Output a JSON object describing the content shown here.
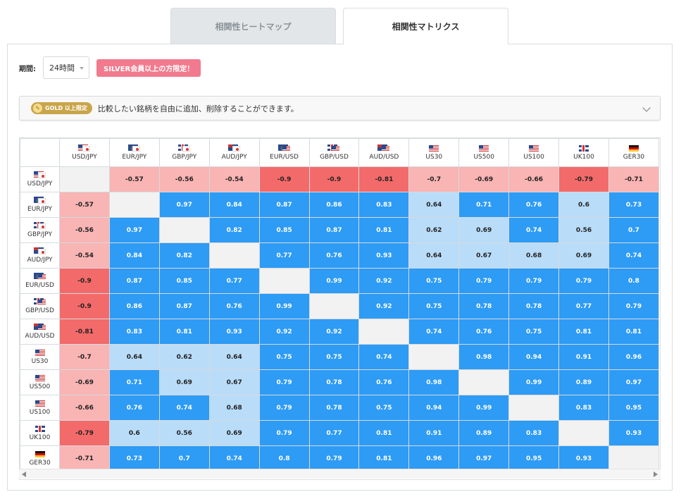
{
  "tabs": [
    {
      "label": "相関性ヒートマップ",
      "active": false
    },
    {
      "label": "相関性マトリクス",
      "active": true
    }
  ],
  "period": {
    "label": "期間:",
    "selected": "24時間"
  },
  "silver_badge": "SILVER会員以上の方限定！",
  "gold_bar": {
    "badge": "GOLD 以上限定",
    "text": "比較したい銘柄を自由に追加、削除することができます。",
    "icon": "coin-icon"
  },
  "colors": {
    "neg_strong": "#f36a6a",
    "neg_mid": "#f9b4b4",
    "pos_strong": "#2e9bf5",
    "pos_mid": "#b9dcf9",
    "diag": "#f2f2f2"
  },
  "symbols": [
    {
      "label": "USD/JPY",
      "flags": [
        "us",
        "jp"
      ]
    },
    {
      "label": "EUR/JPY",
      "flags": [
        "eu",
        "jp"
      ]
    },
    {
      "label": "GBP/JPY",
      "flags": [
        "gb",
        "jp"
      ]
    },
    {
      "label": "AUD/JPY",
      "flags": [
        "au",
        "jp"
      ]
    },
    {
      "label": "EUR/USD",
      "flags": [
        "eu",
        "us"
      ]
    },
    {
      "label": "GBP/USD",
      "flags": [
        "gb",
        "us"
      ]
    },
    {
      "label": "AUD/USD",
      "flags": [
        "au",
        "us"
      ]
    },
    {
      "label": "US30",
      "flags": [
        "us"
      ]
    },
    {
      "label": "US500",
      "flags": [
        "us"
      ]
    },
    {
      "label": "US100",
      "flags": [
        "us"
      ]
    },
    {
      "label": "UK100",
      "flags": [
        "gb"
      ]
    },
    {
      "label": "GER30",
      "flags": [
        "de"
      ]
    }
  ],
  "matrix": [
    [
      null,
      "-0.57",
      "-0.56",
      "-0.54",
      "-0.9",
      "-0.9",
      "-0.81",
      "-0.7",
      "-0.69",
      "-0.66",
      "-0.79",
      "-0.71"
    ],
    [
      "-0.57",
      null,
      "0.97",
      "0.84",
      "0.87",
      "0.86",
      "0.83",
      "0.64",
      "0.71",
      "0.76",
      "0.6",
      "0.73"
    ],
    [
      "-0.56",
      "0.97",
      null,
      "0.82",
      "0.85",
      "0.87",
      "0.81",
      "0.62",
      "0.69",
      "0.74",
      "0.56",
      "0.7"
    ],
    [
      "-0.54",
      "0.84",
      "0.82",
      null,
      "0.77",
      "0.76",
      "0.93",
      "0.64",
      "0.67",
      "0.68",
      "0.69",
      "0.74"
    ],
    [
      "-0.9",
      "0.87",
      "0.85",
      "0.77",
      null,
      "0.99",
      "0.92",
      "0.75",
      "0.79",
      "0.79",
      "0.79",
      "0.8"
    ],
    [
      "-0.9",
      "0.86",
      "0.87",
      "0.76",
      "0.99",
      null,
      "0.92",
      "0.75",
      "0.78",
      "0.78",
      "0.77",
      "0.79"
    ],
    [
      "-0.81",
      "0.83",
      "0.81",
      "0.93",
      "0.92",
      "0.92",
      null,
      "0.74",
      "0.76",
      "0.75",
      "0.81",
      "0.81"
    ],
    [
      "-0.7",
      "0.64",
      "0.62",
      "0.64",
      "0.75",
      "0.75",
      "0.74",
      null,
      "0.98",
      "0.94",
      "0.91",
      "0.96"
    ],
    [
      "-0.69",
      "0.71",
      "0.69",
      "0.67",
      "0.79",
      "0.78",
      "0.76",
      "0.98",
      null,
      "0.99",
      "0.89",
      "0.97"
    ],
    [
      "-0.66",
      "0.76",
      "0.74",
      "0.68",
      "0.79",
      "0.78",
      "0.75",
      "0.94",
      "0.99",
      null,
      "0.83",
      "0.95"
    ],
    [
      "-0.79",
      "0.6",
      "0.56",
      "0.69",
      "0.79",
      "0.77",
      "0.81",
      "0.91",
      "0.89",
      "0.83",
      null,
      "0.93"
    ],
    [
      "-0.71",
      "0.73",
      "0.7",
      "0.74",
      "0.8",
      "0.79",
      "0.81",
      "0.96",
      "0.97",
      "0.95",
      "0.93",
      null
    ]
  ]
}
